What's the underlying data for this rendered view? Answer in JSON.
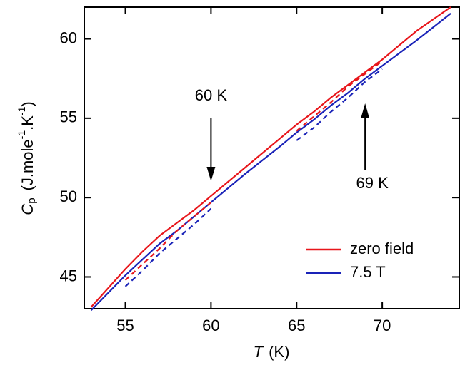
{
  "chart_data": {
    "type": "line",
    "xlabel": {
      "symbol": "T",
      "unit": "(K)"
    },
    "ylabel": {
      "symbol": "C",
      "sub": "p",
      "unit": [
        "(J.mole",
        "-1",
        ".K",
        "-1",
        ")"
      ]
    },
    "x": [
      53,
      55,
      56,
      57,
      58,
      59,
      60,
      62,
      64,
      65,
      66,
      67,
      68,
      69,
      70,
      72,
      74
    ],
    "series": [
      {
        "name": "zero field",
        "color": "#e8161b",
        "dashed": false,
        "values": [
          43.1,
          45.5,
          46.6,
          47.6,
          48.4,
          49.2,
          50.1,
          51.9,
          53.7,
          54.6,
          55.4,
          56.3,
          57.1,
          57.9,
          58.7,
          60.5,
          62.0
        ]
      },
      {
        "name": "7.5 T",
        "color": "#1a23b8",
        "dashed": false,
        "values": [
          42.9,
          45.1,
          46.1,
          47.1,
          47.9,
          48.8,
          49.7,
          51.5,
          53.2,
          54.1,
          54.9,
          55.8,
          56.6,
          57.5,
          58.3,
          59.9,
          61.6
        ]
      },
      {
        "color": "#e8161b",
        "dashed": true,
        "values": [
          null,
          44.8,
          45.8,
          46.8,
          47.9,
          48.8,
          49.7,
          null,
          null,
          54.2,
          55.1,
          56.0,
          57.0,
          57.8,
          58.6,
          null,
          null
        ]
      },
      {
        "color": "#1a23b8",
        "dashed": true,
        "values": [
          null,
          44.4,
          45.4,
          46.5,
          47.4,
          48.3,
          49.3,
          null,
          null,
          53.6,
          54.4,
          55.4,
          56.3,
          57.3,
          58.1,
          null,
          null
        ]
      }
    ],
    "xlim": [
      52.6,
      74.5
    ],
    "xticks": [
      55,
      60,
      65,
      70
    ],
    "ylim": [
      43,
      62
    ],
    "yticks": [
      45,
      50,
      55,
      60
    ],
    "legend": "lower right",
    "annotations": [
      {
        "text": "60 K",
        "x": 60,
        "direction": "down"
      },
      {
        "text": "69 K",
        "x": 69,
        "direction": "up"
      }
    ]
  }
}
